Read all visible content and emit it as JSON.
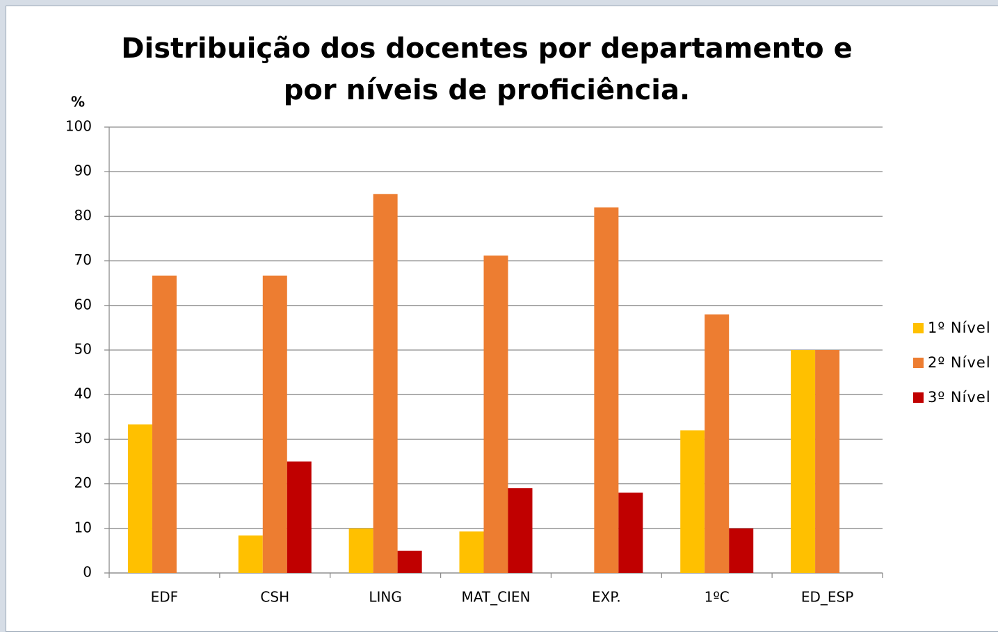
{
  "chart_data": {
    "type": "bar",
    "title": "Distribuição dos docentes por departamento e por níveis de proficiência.",
    "y_label": "%",
    "categories": [
      "EDF",
      "CSH",
      "LING",
      "MAT_CIEN",
      "EXP.",
      "1ºC",
      "ED_ESP"
    ],
    "series": [
      {
        "name": "1º Nível",
        "color": "#ffc000",
        "values": [
          33.3,
          8.4,
          10,
          9.3,
          0,
          32,
          50
        ]
      },
      {
        "name": "2º Nível",
        "color": "#ed7d31",
        "values": [
          66.7,
          66.7,
          85,
          71.2,
          82,
          58,
          50
        ]
      },
      {
        "name": "3º Nível",
        "color": "#c00000",
        "values": [
          0,
          25,
          5,
          19,
          18,
          10,
          0
        ]
      }
    ],
    "ylim": [
      0,
      100
    ],
    "yticks": [
      0,
      10,
      20,
      30,
      40,
      50,
      60,
      70,
      80,
      90,
      100
    ],
    "grid": true,
    "legend": "right"
  }
}
